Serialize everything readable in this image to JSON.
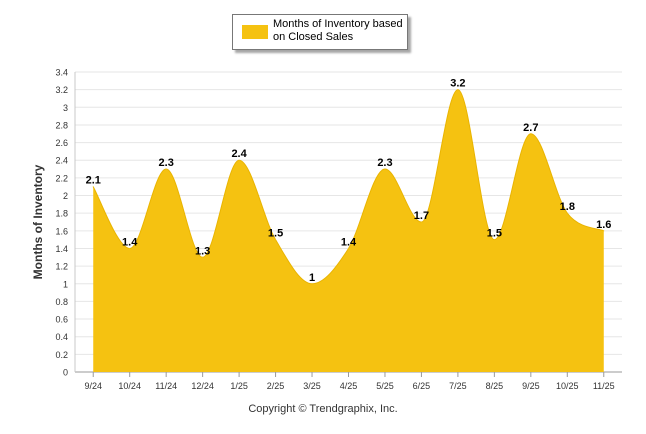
{
  "legend": {
    "label": "Months of Inventory based on Closed Sales"
  },
  "copyright": "Copyright © Trendgraphix, Inc.",
  "chart_data": {
    "type": "area",
    "categories": [
      "9/24",
      "10/24",
      "11/24",
      "12/24",
      "1/25",
      "2/25",
      "3/25",
      "4/25",
      "5/25",
      "6/25",
      "7/25",
      "8/25",
      "9/25",
      "10/25",
      "11/25"
    ],
    "series": [
      {
        "name": "Months of Inventory based on Closed Sales",
        "values": [
          2.1,
          1.4,
          2.3,
          1.3,
          2.4,
          1.5,
          1,
          1.4,
          2.3,
          1.7,
          3.2,
          1.5,
          2.7,
          1.8,
          1.6
        ],
        "color": "#F5C211"
      }
    ],
    "data_labels": [
      "2.1",
      "1.4",
      "2.3",
      "1.3",
      "2.4",
      "1.5",
      "1",
      "1.4",
      "2.3",
      "1.7",
      "3.2",
      "1.5",
      "2.7",
      "1.8",
      "1.6"
    ],
    "ylabel": "Months of Inventory",
    "ylim": [
      0,
      3.4
    ],
    "yticks": [
      "0",
      "0.2",
      "0.4",
      "0.6",
      "0.8",
      "1",
      "1.2",
      "1.4",
      "1.6",
      "1.8",
      "2",
      "2.2",
      "2.4",
      "2.6",
      "2.8",
      "3",
      "3.2",
      "3.4"
    ],
    "grid": true,
    "legend_position": "top-center"
  }
}
